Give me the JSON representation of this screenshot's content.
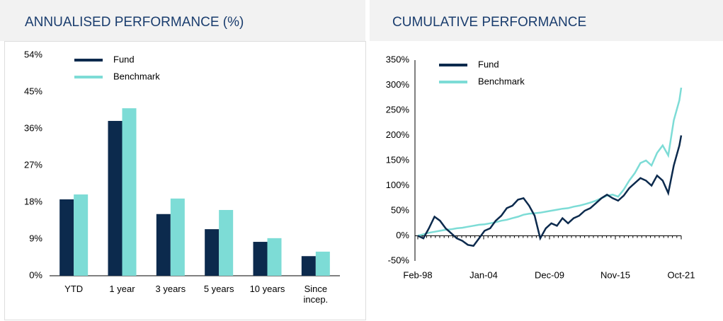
{
  "chart_data": [
    {
      "type": "bar",
      "title": "ANNUALISED PERFORMANCE (%)",
      "categories": [
        "YTD",
        "1 year",
        "3 years",
        "5 years",
        "10 years",
        "Since incep."
      ],
      "series": [
        {
          "name": "Fund",
          "color": "#0c2a4d",
          "values": [
            18.7,
            37.9,
            15.1,
            11.4,
            8.3,
            4.8
          ]
        },
        {
          "name": "Benchmark",
          "color": "#7ddcd6",
          "values": [
            19.9,
            41,
            18.9,
            16.1,
            9.2,
            5.9
          ]
        }
      ],
      "ylim": [
        0,
        54
      ],
      "yticks": [
        {
          "value": 0,
          "label": "0%"
        },
        {
          "value": 9,
          "label": "9%"
        },
        {
          "value": 18,
          "label": "18%"
        },
        {
          "value": 27,
          "label": "27%"
        },
        {
          "value": 36,
          "label": "36%"
        },
        {
          "value": 45,
          "label": "45%"
        },
        {
          "value": 54,
          "label": "54%"
        }
      ],
      "legend": "top-left"
    },
    {
      "type": "line",
      "title": "CUMULATIVE PERFORMANCE",
      "x": [
        "Feb-98",
        "Aug-98",
        "Feb-99",
        "Aug-99",
        "Feb-00",
        "Aug-00",
        "Feb-01",
        "Aug-01",
        "Feb-02",
        "Aug-02",
        "Feb-03",
        "Aug-03",
        "Feb-04",
        "Aug-04",
        "Feb-05",
        "Aug-05",
        "Feb-06",
        "Aug-06",
        "Feb-07",
        "Aug-07",
        "Feb-08",
        "Aug-08",
        "Feb-09",
        "Aug-09",
        "Feb-10",
        "Aug-10",
        "Feb-11",
        "Aug-11",
        "Feb-12",
        "Aug-12",
        "Feb-13",
        "Aug-13",
        "Feb-14",
        "Aug-14",
        "Feb-15",
        "Aug-15",
        "Feb-16",
        "Aug-16",
        "Feb-17",
        "Aug-17",
        "Feb-18",
        "Aug-18",
        "Feb-19",
        "Aug-19",
        "Feb-20",
        "Aug-20",
        "Feb-21",
        "Aug-21",
        "Oct-21"
      ],
      "series": [
        {
          "name": "Fund",
          "color": "#0c2a4d",
          "values": [
            0,
            -5,
            15,
            38,
            30,
            15,
            5,
            -5,
            -10,
            -18,
            -20,
            -5,
            10,
            15,
            30,
            40,
            55,
            60,
            72,
            75,
            60,
            40,
            -5,
            15,
            25,
            20,
            35,
            25,
            35,
            40,
            50,
            55,
            65,
            75,
            82,
            75,
            70,
            80,
            95,
            105,
            115,
            110,
            100,
            120,
            110,
            85,
            140,
            180,
            200
          ]
        },
        {
          "name": "Benchmark",
          "color": "#7ddcd6",
          "values": [
            0,
            3,
            6,
            8,
            10,
            12,
            13,
            15,
            16,
            18,
            20,
            22,
            23,
            25,
            27,
            30,
            32,
            35,
            38,
            42,
            44,
            45,
            46,
            48,
            50,
            52,
            54,
            55,
            58,
            60,
            63,
            66,
            70,
            75,
            80,
            82,
            78,
            92,
            110,
            125,
            145,
            150,
            140,
            165,
            180,
            160,
            230,
            270,
            295
          ]
        }
      ],
      "ylim": [
        -50,
        350
      ],
      "yticks": [
        {
          "value": -50,
          "label": "-50%"
        },
        {
          "value": 0,
          "label": "0%"
        },
        {
          "value": 50,
          "label": "50%"
        },
        {
          "value": 100,
          "label": "100%"
        },
        {
          "value": 150,
          "label": "150%"
        },
        {
          "value": 200,
          "label": "200%"
        },
        {
          "value": 250,
          "label": "250%"
        },
        {
          "value": 300,
          "label": "300%"
        },
        {
          "value": 350,
          "label": "350%"
        }
      ],
      "xticks": [
        "Feb-98",
        "Jan-04",
        "Dec-09",
        "Nov-15",
        "Oct-21"
      ],
      "legend": "top-left"
    }
  ]
}
